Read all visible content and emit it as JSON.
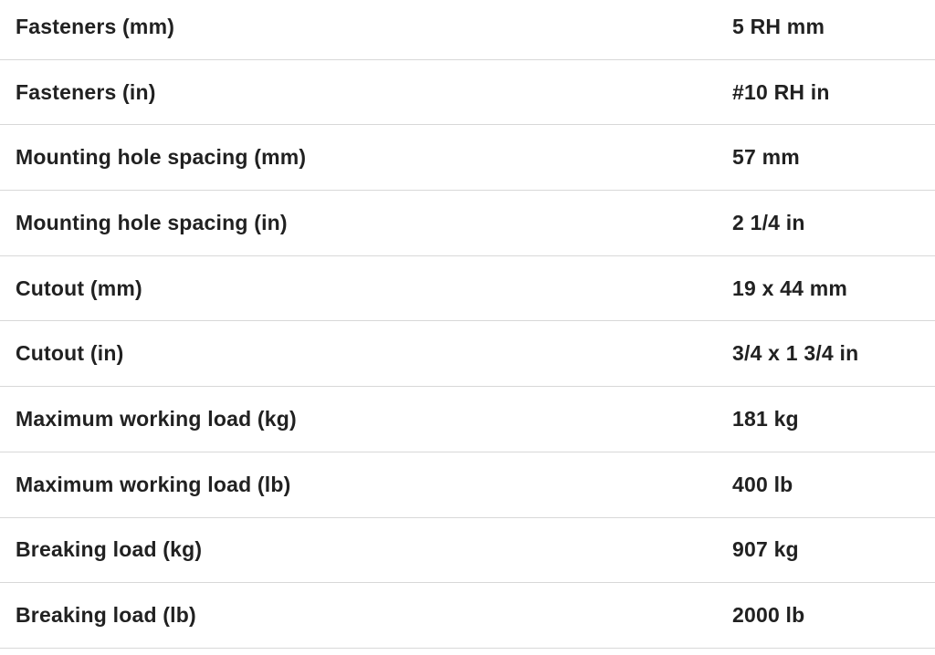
{
  "colors": {
    "background": "#ffffff",
    "text": "#212121",
    "divider": "#d8d8d8"
  },
  "spec_table": {
    "rows": [
      {
        "label": "Fasteners (mm)",
        "value": "5 RH mm"
      },
      {
        "label": "Fasteners (in)",
        "value": "#10 RH in"
      },
      {
        "label": "Mounting hole spacing (mm)",
        "value": "57 mm"
      },
      {
        "label": "Mounting hole spacing (in)",
        "value": "2 1/4 in"
      },
      {
        "label": "Cutout (mm)",
        "value": "19 x 44 mm"
      },
      {
        "label": "Cutout (in)",
        "value": "3/4 x 1 3/4 in"
      },
      {
        "label": "Maximum working load (kg)",
        "value": "181 kg"
      },
      {
        "label": "Maximum working load (lb)",
        "value": "400 lb"
      },
      {
        "label": "Breaking load (kg)",
        "value": "907 kg"
      },
      {
        "label": "Breaking load (lb)",
        "value": "2000 lb"
      }
    ]
  }
}
